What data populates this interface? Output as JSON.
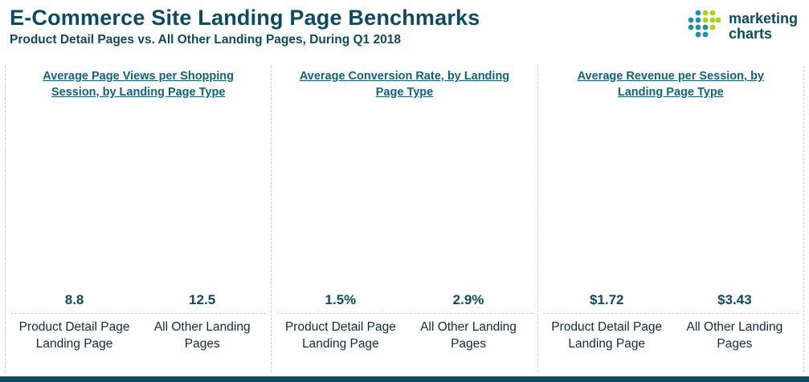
{
  "header": {
    "title": "E-Commerce Site Landing Page Benchmarks",
    "subtitle": "Product Detail Pages vs. All Other Landing Pages, During Q1 2018",
    "logo": {
      "line1": "marketing",
      "line2": "charts",
      "icon": "dot-grid-icon"
    }
  },
  "colors": {
    "heading": "#0d4a63",
    "chart_title": "#0f6380",
    "category_text": "#14293c",
    "footer": "#0d4a63",
    "bars": [
      "#f7688b",
      "#a5d50e"
    ],
    "logo_teal": "#1e8fa8",
    "logo_green": "#a5d50e"
  },
  "chart_data": [
    {
      "type": "bar",
      "title": "Average Page Views per Shopping Session, by Landing Page Type",
      "categories": [
        "Product Detail Page Landing Page",
        "All Other Landing Pages"
      ],
      "values": [
        8.8,
        12.5
      ],
      "labels": [
        "8.8",
        "12.5"
      ],
      "ylim": [
        0,
        14.5
      ],
      "grid": false,
      "legend": "none"
    },
    {
      "type": "bar",
      "title": "Average Conversion Rate, by Landing Page Type",
      "categories": [
        "Product Detail Page Landing Page",
        "All Other Landing Pages"
      ],
      "values": [
        1.5,
        2.9
      ],
      "labels": [
        "1.5%",
        "2.9%"
      ],
      "ylim": [
        0,
        3.4
      ],
      "grid": false,
      "legend": "none"
    },
    {
      "type": "bar",
      "title": "Average Revenue per Session, by Landing Page Type",
      "categories": [
        "Product Detail Page Landing Page",
        "All Other Landing Pages"
      ],
      "values": [
        1.72,
        3.43
      ],
      "labels": [
        "$1.72",
        "$3.43"
      ],
      "ylim": [
        0,
        4.0
      ],
      "grid": false,
      "legend": "none"
    }
  ]
}
